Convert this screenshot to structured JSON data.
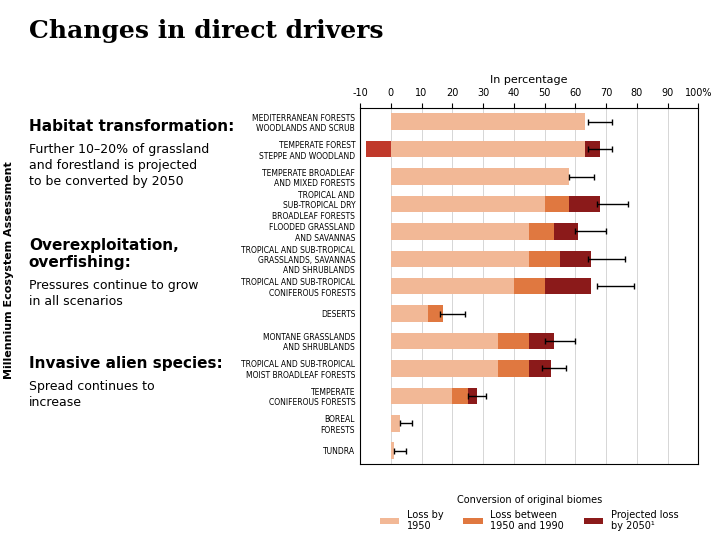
{
  "chart_data": {
    "type": "bar",
    "orientation": "horizontal",
    "stacked": true,
    "grid": true,
    "legend": "lower center",
    "title": "Changes in direct drivers",
    "side_note": "Millennium Ecosystem Assessment",
    "x_label": "In percentage",
    "legend_title": "Conversion of original biomes",
    "notes": [
      {
        "heading": "Habitat transformation:",
        "text": "Further 10–20% of grassland\nand forestland is projected\nto be converted by 2050"
      },
      {
        "heading": "Overexploitation,\noverfishing:",
        "text": "Pressures continue to grow\nin all scenarios"
      },
      {
        "heading": "Invasive alien species:",
        "text": "Spread continues to\nincrease"
      }
    ],
    "categories": [
      "MEDITERRANEAN FORESTS\nWOODLANDS AND SCRUB",
      "TEMPERATE FOREST\nSTEPPE AND WOODLAND",
      "TEMPERATE BROADLEAF\nAND MIXED FORESTS",
      "TROPICAL AND\nSUB-TROPICAL DRY\nBROADLEAF FORESTS",
      "FLOODED GRASSLAND\nAND SAVANNAS",
      "TROPICAL AND SUB-TROPICAL\nGRASSLANDS, SAVANNAS\nAND SHRUBLANDS",
      "TROPICAL AND SUB-TROPICAL\nCONIFEROUS FORESTS",
      "DESERTS",
      "MONTANE GRASSLANDS\nAND SHRUBLANDS",
      "TROPICAL AND SUB-TROPICAL\nMOIST BROADLEAF FORESTS",
      "TEMPERATE\nCONIFEROUS FORESTS",
      "BOREAL\nFORESTS",
      "TUNDRA"
    ],
    "series": [
      {
        "name": "Loss by\n1950",
        "color": "#f2b896",
        "values": [
          63,
          63,
          58,
          50,
          45,
          45,
          40,
          12,
          35,
          35,
          20,
          3,
          1
        ]
      },
      {
        "name": "Loss between\n1950 and 1990",
        "color": "#e07840",
        "values": [
          0,
          0,
          0,
          8,
          8,
          10,
          10,
          5,
          10,
          10,
          5,
          0,
          0
        ]
      },
      {
        "name": "Projected loss\nby 2050¹",
        "color": "#8b1a1a",
        "values": [
          0,
          5,
          0,
          10,
          8,
          10,
          15,
          0,
          8,
          7,
          3,
          0,
          0
        ]
      }
    ],
    "negative_bar": {
      "color": "#c0392b",
      "values": [
        0,
        -8,
        0,
        0,
        0,
        0,
        0,
        0,
        0,
        0,
        0,
        0,
        0
      ]
    },
    "error_bars": {
      "x": [
        68,
        68,
        62,
        72,
        65,
        70,
        73,
        20,
        55,
        53,
        28,
        5,
        3
      ],
      "xerr": [
        4,
        4,
        4,
        5,
        5,
        6,
        6,
        4,
        5,
        4,
        3,
        2,
        2
      ]
    },
    "xlim": [
      -10,
      100
    ],
    "xticks": [
      -10,
      0,
      10,
      20,
      30,
      40,
      50,
      60,
      70,
      80,
      90,
      {
        "value": 100,
        "label": "100%"
      }
    ]
  }
}
